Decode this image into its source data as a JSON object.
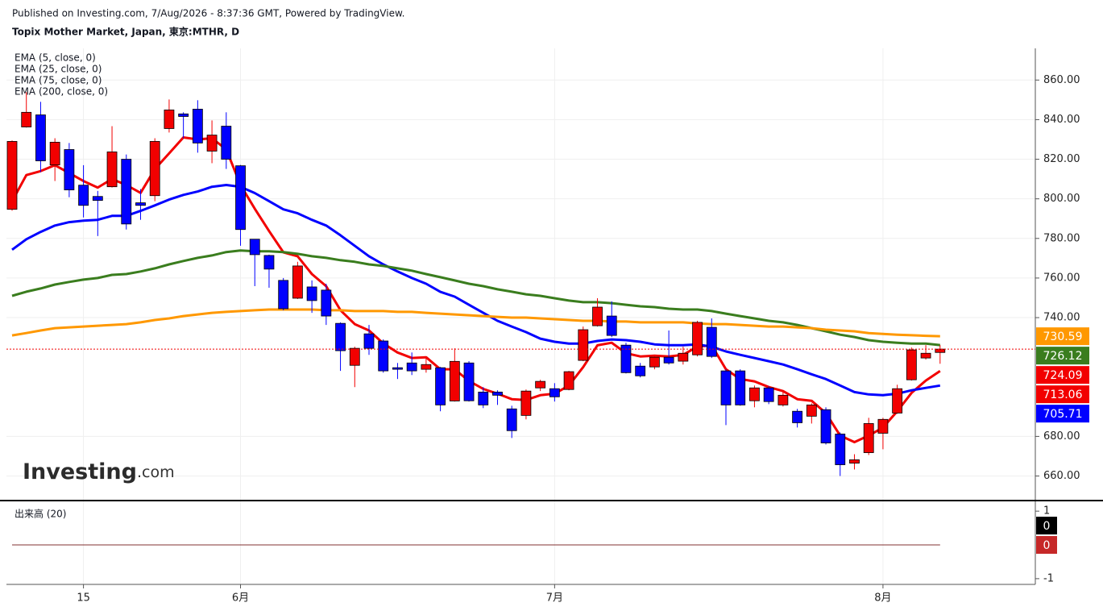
{
  "chart_data": {
    "type": "candlestick",
    "source": "Published on Investing.com, 7/Aug/2026 - 8:37:36 GMT, Powered by TradingView.",
    "title": "Topix Mother Market, Japan, 東京:MTHR, D",
    "logo": [
      "Investing",
      ".com"
    ],
    "categories": [
      null,
      null,
      null,
      null,
      null,
      "15",
      null,
      null,
      null,
      null,
      null,
      null,
      null,
      null,
      null,
      null,
      "6月",
      null,
      null,
      null,
      null,
      null,
      null,
      null,
      null,
      null,
      null,
      null,
      null,
      null,
      null,
      null,
      null,
      null,
      null,
      null,
      null,
      null,
      "7月",
      null,
      null,
      null,
      null,
      null,
      null,
      null,
      null,
      null,
      null,
      null,
      null,
      null,
      null,
      null,
      null,
      null,
      null,
      null,
      null,
      null,
      null,
      "8月",
      null,
      null,
      null,
      null
    ],
    "open": [
      794.7,
      836.3,
      842.4,
      817.1,
      824.9,
      806.9,
      801.2,
      806.1,
      820,
      798,
      801.6,
      835.5,
      842.9,
      845.3,
      824.1,
      836.7,
      816.7,
      779.6,
      771.4,
      758.8,
      749.8,
      755.5,
      753.9,
      737.1,
      715.9,
      731.8,
      728.2,
      714.7,
      717.1,
      713.9,
      714.7,
      697.9,
      717.1,
      702.4,
      702.4,
      693.9,
      690.6,
      704.5,
      704.1,
      703.7,
      718.4,
      735.9,
      740.8,
      726.1,
      715.5,
      715.1,
      720,
      718,
      721.2,
      735.1,
      713.1,
      713.1,
      698,
      704.5,
      695.9,
      692.7,
      690.2,
      693.5,
      681.2,
      666.5,
      671.8,
      681.6,
      691.8,
      708.6,
      719.6,
      722.4
    ],
    "high": [
      829.5,
      853.9,
      849,
      830.6,
      828.2,
      817,
      804,
      836.7,
      822.4,
      804.9,
      830.6,
      850.2,
      843.7,
      849.8,
      839.6,
      843.7,
      817.1,
      779.6,
      771.8,
      760,
      768.2,
      758.8,
      757.1,
      737.6,
      725.3,
      736.3,
      729,
      717.1,
      722.4,
      720.4,
      715.1,
      724.5,
      718,
      704.9,
      703.3,
      695.5,
      703.7,
      708.6,
      706.9,
      713.1,
      735.5,
      749.8,
      748.2,
      727.3,
      717.1,
      721.2,
      733.5,
      725.3,
      738.4,
      739.6,
      713.9,
      713.9,
      705.7,
      705.3,
      703.3,
      693.9,
      696.7,
      694.7,
      682,
      671,
      689.4,
      689.4,
      706.1,
      724.9,
      726.1,
      726.1
    ],
    "low": [
      794,
      836,
      813.5,
      809,
      800.8,
      790.6,
      781.2,
      805.7,
      784.5,
      789.4,
      798.8,
      833.5,
      830.6,
      823.3,
      818,
      815.1,
      776.3,
      755.9,
      755.1,
      743.7,
      749.4,
      742.4,
      736.3,
      713.1,
      704.9,
      721.2,
      712.2,
      709,
      711,
      712.2,
      692.7,
      697.6,
      697.6,
      694.3,
      695.9,
      679.2,
      688.6,
      702.9,
      697.6,
      703.3,
      718,
      735.5,
      730.2,
      711.8,
      709.8,
      713.9,
      716.3,
      716.3,
      720.4,
      719.6,
      685.7,
      695.5,
      694.7,
      696.3,
      695.1,
      684.5,
      686.5,
      675.9,
      660,
      663.3,
      670.6,
      673.5,
      691.4,
      708.2,
      718.8,
      716.7
    ],
    "close": [
      829,
      843.7,
      819.2,
      828.6,
      804.5,
      796.7,
      799.2,
      823.7,
      787.3,
      796.7,
      829,
      844.9,
      841.6,
      828.2,
      832.2,
      820,
      784.5,
      771.8,
      764.5,
      744.5,
      766.1,
      748.6,
      740.8,
      723.3,
      724.5,
      724.5,
      713.1,
      713.9,
      713.1,
      716.3,
      695.9,
      717.9,
      698,
      695.9,
      700.8,
      682.9,
      702.9,
      707.8,
      700,
      712.7,
      733.9,
      745.3,
      731,
      712.2,
      710.6,
      720,
      717.1,
      722,
      737.6,
      720.4,
      695.9,
      695.9,
      704.5,
      697.6,
      700.8,
      686.9,
      695.9,
      676.7,
      665.7,
      668.2,
      686.5,
      688.6,
      704.1,
      723.7,
      722,
      724.09
    ],
    "up_color": "#f20000",
    "down_color": "#0000ff",
    "series": [
      {
        "name": "EMA (5, close, 0)",
        "color": "#f20000",
        "values": [
          798.8,
          812,
          814,
          817,
          813,
          809,
          805.7,
          810,
          807,
          803,
          815,
          823,
          831,
          830,
          830.6,
          825,
          807,
          795,
          783.7,
          773,
          771,
          762,
          755.9,
          743.7,
          736.7,
          733.5,
          727,
          722.4,
          719.6,
          720,
          713.9,
          713.9,
          708,
          704,
          701.6,
          698.8,
          698.4,
          700.8,
          701.6,
          705.7,
          715,
          726,
          727.3,
          722,
          720.4,
          720.8,
          720.4,
          721.2,
          725.3,
          726,
          713.9,
          709,
          707.8,
          704.9,
          702.9,
          698.8,
          698,
          691.8,
          680.4,
          677.1,
          680.4,
          684.5,
          692.7,
          702,
          708.2,
          713.06
        ]
      },
      {
        "name": "EMA (25, close, 0)",
        "color": "#0000ff",
        "values": [
          774.3,
          779.6,
          783.3,
          786.5,
          788.2,
          789,
          789.4,
          791.4,
          791.4,
          793.9,
          796.7,
          799.6,
          802,
          803.7,
          806.1,
          807,
          806.1,
          802.9,
          798.8,
          794.7,
          792.7,
          789.4,
          786.5,
          781.6,
          776.3,
          771,
          766.9,
          763.3,
          760,
          757.1,
          753,
          750.6,
          746.5,
          742.4,
          738.4,
          735.5,
          732.7,
          729.4,
          727.8,
          726.9,
          726.9,
          728.2,
          729,
          728.6,
          727.8,
          726.5,
          726.1,
          726.1,
          726.5,
          725.3,
          722.9,
          721.2,
          719.6,
          718,
          716.3,
          713.9,
          711.4,
          709,
          705.7,
          702.4,
          701.2,
          700.8,
          701.6,
          703.3,
          704.5,
          705.71
        ]
      },
      {
        "name": "EMA (75, close, 0)",
        "color": "#3a7d1e",
        "values": [
          751,
          753.1,
          754.7,
          756.7,
          758,
          759.2,
          760,
          761.6,
          762,
          763.3,
          764.9,
          766.9,
          768.6,
          770.2,
          771.4,
          773.1,
          773.9,
          773.5,
          773.5,
          773.1,
          772.2,
          771,
          770.2,
          769,
          768.2,
          766.9,
          766.1,
          764.9,
          763.7,
          762,
          760.4,
          758.8,
          757.1,
          755.9,
          754.3,
          753.1,
          751.8,
          751,
          749.8,
          748.6,
          747.8,
          747.8,
          747.3,
          746.5,
          745.7,
          745.3,
          744.5,
          744.1,
          744.1,
          743.3,
          742,
          740.8,
          739.6,
          738.4,
          737.6,
          736.3,
          734.7,
          733.1,
          731.4,
          730.2,
          728.6,
          727.8,
          727.3,
          726.9,
          726.9,
          726.12
        ]
      },
      {
        "name": "EMA (200, close, 0)",
        "color": "#ff9800",
        "values": [
          731,
          732.2,
          733.5,
          734.7,
          735.1,
          735.5,
          735.9,
          736.3,
          736.7,
          737.6,
          738.8,
          739.6,
          740.8,
          741.6,
          742.4,
          742.9,
          743.3,
          743.7,
          744.1,
          744.1,
          744.1,
          744.1,
          743.7,
          743.7,
          743.3,
          743.3,
          743.3,
          742.9,
          742.9,
          742.4,
          742,
          741.6,
          741.2,
          740.8,
          740.4,
          740,
          740,
          739.6,
          739.2,
          738.8,
          738.4,
          738.4,
          738,
          738,
          737.6,
          737.6,
          737.6,
          737.6,
          737.1,
          736.7,
          736.7,
          736.3,
          735.9,
          735.5,
          735.5,
          735.1,
          734.7,
          733.9,
          733.5,
          733.1,
          732.2,
          731.8,
          731.4,
          731.1,
          730.8,
          730.59
        ]
      }
    ],
    "ylim": [
      648,
      876
    ],
    "yticks": [
      {
        "value": 660,
        "label": "660.00"
      },
      {
        "value": 680,
        "label": "680.00"
      },
      {
        "value": 740,
        "label": "740.00"
      },
      {
        "value": 760,
        "label": "760.00"
      },
      {
        "value": 780,
        "label": "780.00"
      },
      {
        "value": 800,
        "label": "800.00"
      },
      {
        "value": 820,
        "label": "820.00"
      },
      {
        "value": 840,
        "label": "840.00"
      },
      {
        "value": 860,
        "label": "860.00"
      }
    ],
    "grid": true,
    "volume": {
      "title": "出来高 (20)",
      "ylim": [
        -1.17,
        1.29
      ],
      "yticks": [
        1,
        -1
      ],
      "series": [
        {
          "color": "#000000",
          "values": [
            0,
            0,
            0,
            0,
            0,
            0,
            0,
            0,
            0,
            0,
            0,
            0,
            0,
            0,
            0,
            0,
            0,
            0,
            0,
            0,
            0,
            0,
            0,
            0,
            0,
            0,
            0,
            0,
            0,
            0,
            0,
            0,
            0,
            0,
            0,
            0,
            0,
            0,
            0,
            0,
            0,
            0,
            0,
            0,
            0,
            0,
            0,
            0,
            0,
            0,
            0,
            0,
            0,
            0,
            0,
            0,
            0,
            0,
            0,
            0,
            0,
            0,
            0,
            0,
            0,
            0
          ]
        },
        {
          "color": "#c62828",
          "values": [
            0,
            0,
            0,
            0,
            0,
            0,
            0,
            0,
            0,
            0,
            0,
            0,
            0,
            0,
            0,
            0,
            0,
            0,
            0,
            0,
            0,
            0,
            0,
            0,
            0,
            0,
            0,
            0,
            0,
            0,
            0,
            0,
            0,
            0,
            0,
            0,
            0,
            0,
            0,
            0,
            0,
            0,
            0,
            0,
            0,
            0,
            0,
            0,
            0,
            0,
            0,
            0,
            0,
            0,
            0,
            0,
            0,
            0,
            0,
            0,
            0,
            0,
            0,
            0,
            0,
            0
          ]
        }
      ]
    }
  }
}
